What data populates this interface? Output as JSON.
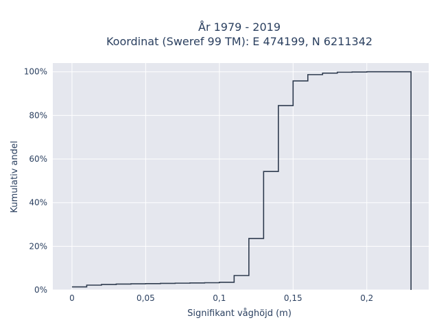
{
  "chart_data": {
    "type": "line",
    "line_shape": "step",
    "title_line1": "År 1979 - 2019",
    "title_line2": "Koordinat (Sweref 99 TM): E 474199, N 6211342",
    "xlabel": "Signifikant våghöjd (m)",
    "ylabel": "Kumulativ andel",
    "xlim": [
      -0.013,
      0.242
    ],
    "ylim": [
      0,
      1.04
    ],
    "x_ticks": [
      {
        "value": 0,
        "label": "0"
      },
      {
        "value": 0.05,
        "label": "0,05"
      },
      {
        "value": 0.1,
        "label": "0,1"
      },
      {
        "value": 0.15,
        "label": "0,15"
      },
      {
        "value": 0.2,
        "label": "0,2"
      }
    ],
    "y_ticks": [
      {
        "value": 0,
        "label": "0%"
      },
      {
        "value": 0.2,
        "label": "20%"
      },
      {
        "value": 0.4,
        "label": "40%"
      },
      {
        "value": 0.6,
        "label": "60%"
      },
      {
        "value": 0.8,
        "label": "80%"
      },
      {
        "value": 1.0,
        "label": "100%"
      }
    ],
    "grid": true,
    "colors": {
      "line": "#2e3b4e",
      "plot_background": "#e5e7ee",
      "grid": "#ffffff",
      "text": "#2a3f5f"
    },
    "series": [
      {
        "x": [
          0,
          0.01,
          0.02,
          0.03,
          0.04,
          0.05,
          0.06,
          0.07,
          0.08,
          0.09,
          0.1,
          0.11,
          0.12,
          0.13,
          0.14,
          0.15,
          0.16,
          0.17,
          0.18,
          0.19,
          0.2,
          0.21,
          0.22,
          0.23
        ],
        "y": [
          0.014,
          0.022,
          0.025,
          0.027,
          0.028,
          0.029,
          0.03,
          0.031,
          0.032,
          0.033,
          0.035,
          0.066,
          0.236,
          0.543,
          0.845,
          0.958,
          0.987,
          0.994,
          0.998,
          0.999,
          1.0,
          1.0,
          1.0,
          0.0
        ]
      }
    ]
  }
}
